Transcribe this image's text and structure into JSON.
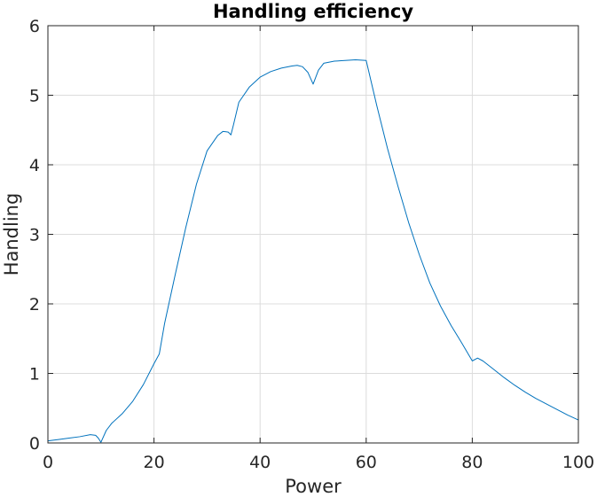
{
  "chart_data": {
    "type": "line",
    "title": "Handling efficiency",
    "xlabel": "Power",
    "ylabel": "Handling",
    "xlim": [
      0,
      100
    ],
    "ylim": [
      0,
      6
    ],
    "xticks": [
      0,
      20,
      40,
      60,
      80,
      100
    ],
    "yticks": [
      0,
      1,
      2,
      3,
      4,
      5,
      6
    ],
    "grid": true,
    "line_color": "#0072BD",
    "series": [
      {
        "x": [
          0,
          2,
          4,
          6,
          8,
          9,
          9.5,
          10,
          11,
          12,
          14,
          16,
          18,
          20,
          21,
          22,
          24,
          26,
          28,
          30,
          32,
          33,
          34,
          34.5,
          35,
          36,
          38,
          40,
          42,
          44,
          46,
          47,
          48,
          49,
          50,
          51,
          52,
          54,
          56,
          58,
          60,
          62,
          64,
          66,
          68,
          70,
          72,
          74,
          76,
          78,
          80,
          81,
          82,
          84,
          86,
          88,
          90,
          92,
          94,
          96,
          98,
          100
        ],
        "y": [
          0.03,
          0.05,
          0.07,
          0.09,
          0.12,
          0.11,
          0.07,
          0.01,
          0.18,
          0.28,
          0.42,
          0.6,
          0.84,
          1.14,
          1.28,
          1.72,
          2.42,
          3.1,
          3.72,
          4.2,
          4.42,
          4.48,
          4.47,
          4.43,
          4.58,
          4.9,
          5.12,
          5.26,
          5.34,
          5.39,
          5.42,
          5.43,
          5.41,
          5.33,
          5.16,
          5.36,
          5.46,
          5.49,
          5.5,
          5.51,
          5.5,
          4.85,
          4.24,
          3.69,
          3.17,
          2.71,
          2.3,
          1.97,
          1.69,
          1.44,
          1.18,
          1.22,
          1.18,
          1.06,
          0.94,
          0.83,
          0.73,
          0.64,
          0.56,
          0.48,
          0.4,
          0.33
        ]
      }
    ]
  }
}
